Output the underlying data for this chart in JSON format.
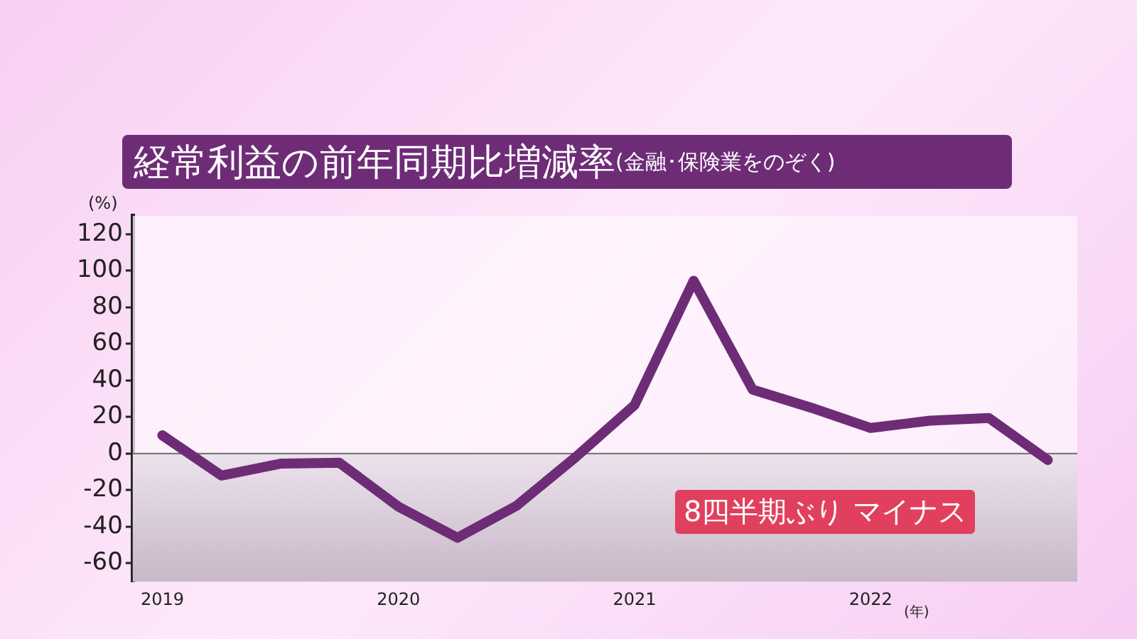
{
  "chart_data": {
    "type": "line",
    "title": "経常利益の前年同期比増減率",
    "subtitle": "(金融･保険業をのぞく)",
    "ylabel": "(%)",
    "xlabel": "(年)",
    "categories": [
      "2019",
      null,
      null,
      null,
      "2020",
      null,
      null,
      null,
      "2021",
      null,
      null,
      null,
      "2022",
      null,
      null,
      null
    ],
    "series": [
      {
        "color": "#6e2c77",
        "values": [
          10,
          -12,
          -5.5,
          -5,
          -29,
          -46,
          -28.5,
          -2,
          26.5,
          94.5,
          35,
          25,
          14,
          18,
          19.5,
          -3.5
        ]
      }
    ],
    "ylim": [
      -70,
      130
    ],
    "yticks": [
      -60,
      -40,
      -20,
      0,
      20,
      40,
      60,
      80,
      100,
      120
    ],
    "ref_lines": [
      {
        "axis": "y",
        "value": 0,
        "color": "#7a7a7a"
      }
    ],
    "bands": [
      {
        "axis": "y",
        "from": -70,
        "to": 0,
        "color": "#c8b8c8"
      }
    ],
    "annotations": [
      "8四半期ぶり マイナス"
    ],
    "grid": false,
    "legend": false,
    "marker": "none",
    "line_style": "solid"
  }
}
